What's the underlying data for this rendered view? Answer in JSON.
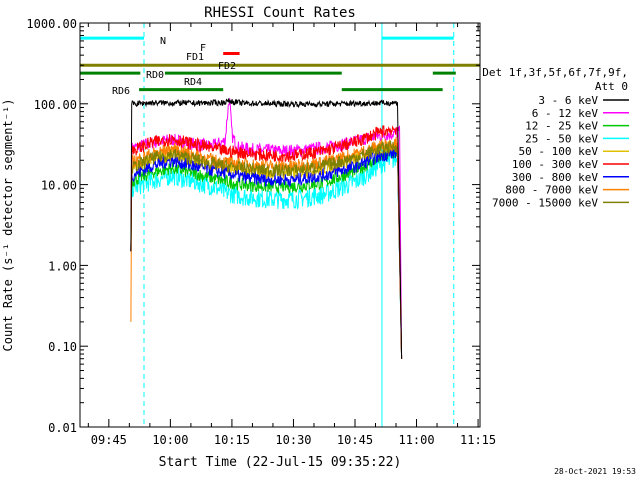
{
  "chart_data": {
    "type": "line",
    "title": "RHESSI Count Rates",
    "xlabel": "Start Time (22-Jul-15 09:35:22)",
    "ylabel": "Count Rate (s⁻¹ detector segment⁻¹)",
    "ylim": [
      0.01,
      1000
    ],
    "yscale": "log",
    "xlim_minutes_after_start": [
      2.6,
      100.1
    ],
    "x_ticks": [
      {
        "label": "09:45",
        "minute": 9.63
      },
      {
        "label": "10:00",
        "minute": 24.63
      },
      {
        "label": "10:15",
        "minute": 39.63
      },
      {
        "label": "10:30",
        "minute": 54.63
      },
      {
        "label": "10:45",
        "minute": 69.63
      },
      {
        "label": "11:00",
        "minute": 84.63
      },
      {
        "label": "11:15",
        "minute": 99.63
      }
    ],
    "y_ticks": [
      {
        "label": "1000.00",
        "value": 1000
      },
      {
        "label": "100.00",
        "value": 100
      },
      {
        "label": "10.00",
        "value": 10
      },
      {
        "label": "1.00",
        "value": 1
      },
      {
        "label": "0.10",
        "value": 0.1
      },
      {
        "label": "0.01",
        "value": 0.01
      }
    ],
    "legend_header": [
      "Det 1f,3f,5f,6f,7f,9f,",
      "Att 0"
    ],
    "legend_position": "right",
    "series": [
      {
        "name": "3 - 6 keV",
        "color": "#000000",
        "x": [
          15,
          15.2,
          20,
          30,
          37,
          39,
          42,
          50,
          60,
          70,
          80,
          81
        ],
        "y": [
          1.5,
          100,
          103,
          102,
          103,
          108,
          102,
          100,
          99,
          101,
          103,
          0.07
        ]
      },
      {
        "name": "6 - 12 keV",
        "color": "#ff00ff",
        "x": [
          15,
          15.2,
          20,
          25,
          30,
          35,
          38,
          38.5,
          39,
          39.7,
          41,
          45,
          52,
          58,
          65,
          72,
          78,
          80.5,
          81
        ],
        "y": [
          1.5,
          28,
          33,
          36,
          32,
          30,
          35,
          70,
          120,
          40,
          29,
          27,
          26,
          27,
          30,
          37,
          42,
          45,
          0.07
        ]
      },
      {
        "name": "12 - 25 keV",
        "color": "#00c800",
        "x": [
          15,
          15.2,
          20,
          25,
          30,
          35,
          38,
          42,
          48,
          55,
          62,
          70,
          76,
          80,
          81
        ],
        "y": [
          1.5,
          11,
          14,
          16,
          14,
          12,
          11,
          10,
          9.5,
          9.5,
          10.5,
          15,
          22,
          25,
          0.07
        ]
      },
      {
        "name": "25 - 50 keV",
        "color": "#00ffff",
        "x": [
          15,
          15.2,
          20,
          25,
          30,
          35,
          38,
          42,
          48,
          55,
          62,
          70,
          76,
          80,
          81
        ],
        "y": [
          1.5,
          9,
          11,
          13,
          11,
          9.5,
          8,
          7.2,
          6.6,
          6.6,
          7.5,
          11,
          18,
          21,
          0.07
        ]
      },
      {
        "name": "50 - 100 keV",
        "color": "#e0c000",
        "x": [
          15,
          15.2,
          20,
          25,
          30,
          35,
          38,
          42,
          48,
          55,
          62,
          70,
          76,
          80,
          81
        ],
        "y": [
          1.5,
          15,
          20,
          23,
          20,
          17,
          16,
          15,
          14,
          14,
          15.5,
          21,
          28,
          30,
          0.07
        ]
      },
      {
        "name": "100 - 300 keV",
        "color": "#ff0000",
        "x": [
          15,
          15.2,
          20,
          25,
          30,
          35,
          38,
          42,
          48,
          55,
          62,
          70,
          76,
          80,
          81
        ],
        "y": [
          1.5,
          26,
          33,
          37,
          32,
          28,
          26,
          25,
          23,
          23,
          26,
          34,
          45,
          50,
          0.07
        ]
      },
      {
        "name": "300 - 800 keV",
        "color": "#0000ff",
        "x": [
          15,
          15.2,
          20,
          25,
          30,
          35,
          38,
          42,
          48,
          55,
          62,
          70,
          76,
          80,
          81
        ],
        "y": [
          1.5,
          13,
          17,
          20,
          17,
          15,
          14,
          12.5,
          11.5,
          11.5,
          13,
          17,
          23,
          25,
          0.07
        ]
      },
      {
        "name": "800 - 7000 keV",
        "color": "#ff8000",
        "x": [
          15,
          15.2,
          20,
          25,
          30,
          35,
          38,
          42,
          48,
          55,
          62,
          70,
          76,
          80,
          81
        ],
        "y": [
          0.2,
          19,
          24,
          28,
          24,
          20,
          19,
          18,
          17,
          17,
          19,
          24,
          31,
          33,
          0.07
        ]
      },
      {
        "name": "7000 - 15000 keV",
        "color": "#808000",
        "x": [
          15,
          15.2,
          20,
          25,
          30,
          35,
          38,
          42,
          48,
          55,
          62,
          70,
          76,
          80,
          81
        ],
        "y": [
          1.5,
          16,
          21,
          24,
          21,
          18,
          17,
          16,
          15,
          15,
          17,
          22,
          28,
          30,
          0.07
        ]
      }
    ],
    "vertical_markers": [
      {
        "minute": 2.6,
        "color": "#00ffff",
        "style": "dash"
      },
      {
        "minute": 18.2,
        "color": "#00ffff",
        "style": "dash"
      },
      {
        "minute": 76.2,
        "color": "#00ffff",
        "style": "solid"
      },
      {
        "minute": 93.7,
        "color": "#00ffff",
        "style": "dash"
      }
    ],
    "interval_bars": [
      {
        "label": "N",
        "color": "#00ffff",
        "value": 650,
        "segments": [
          [
            2.6,
            18.2
          ],
          [
            76.2,
            93.7
          ]
        ]
      },
      {
        "label": "F",
        "color": "#ff0000",
        "value": 420,
        "segments": [
          [
            37.5,
            41.5
          ]
        ]
      },
      {
        "label": "FD1",
        "color": "#808000",
        "value": 360,
        "segments": []
      },
      {
        "label": "FD2",
        "color": "#808000",
        "value": 300,
        "segments": [
          [
            2.6,
            100.1
          ]
        ]
      },
      {
        "label": "RD0",
        "color": "#008000",
        "value": 240,
        "segments": [
          [
            2.6,
            17.3
          ],
          [
            23.3,
            66.4
          ],
          [
            88.6,
            94.2
          ]
        ]
      },
      {
        "label": "RD4",
        "color": "#008000",
        "value": 190,
        "segments": []
      },
      {
        "label": "RD6",
        "color": "#008000",
        "value": 150,
        "segments": [
          [
            17,
            37.5
          ],
          [
            66.4,
            91
          ]
        ]
      }
    ],
    "timestamp": "28-Oct-2021 19:53"
  }
}
